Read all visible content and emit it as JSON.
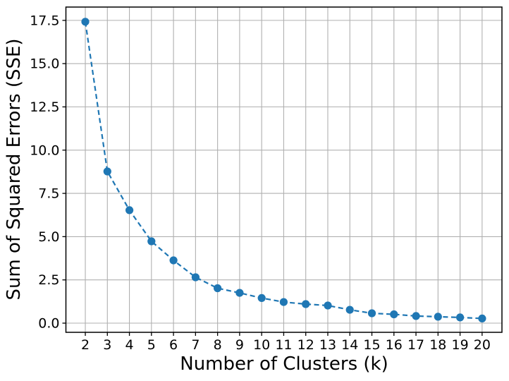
{
  "chart_data": {
    "type": "line",
    "title": "",
    "xlabel": "Number of Clusters (k)",
    "ylabel": "Sum of Squared Errors (SSE)",
    "x": [
      2,
      3,
      4,
      5,
      6,
      7,
      8,
      9,
      10,
      11,
      12,
      13,
      14,
      15,
      16,
      17,
      18,
      19,
      20
    ],
    "y": [
      17.42,
      8.77,
      6.53,
      4.73,
      3.63,
      2.65,
      2.02,
      1.75,
      1.45,
      1.22,
      1.1,
      1.02,
      0.77,
      0.57,
      0.51,
      0.41,
      0.37,
      0.33,
      0.27
    ],
    "xticks": [
      2,
      3,
      4,
      5,
      6,
      7,
      8,
      9,
      10,
      11,
      12,
      13,
      14,
      15,
      16,
      17,
      18,
      19,
      20
    ],
    "xtick_labels": [
      "2",
      "3",
      "4",
      "5",
      "6",
      "7",
      "8",
      "9",
      "10",
      "11",
      "12",
      "13",
      "14",
      "15",
      "16",
      "17",
      "18",
      "19",
      "20"
    ],
    "yticks": [
      0.0,
      2.5,
      5.0,
      7.5,
      10.0,
      12.5,
      15.0,
      17.5
    ],
    "ytick_labels": [
      "0.0",
      "2.5",
      "5.0",
      "7.5",
      "10.0",
      "12.5",
      "15.0",
      "17.5"
    ],
    "xlim": [
      1.12,
      20.9
    ],
    "ylim": [
      -0.53,
      18.27
    ],
    "grid": true,
    "legend": "none",
    "line_color": "#1f77b4",
    "line_style": "dashed",
    "marker": "circle",
    "grid_color": "#b0b0b0",
    "spine_color": "#000000",
    "background_color": "#ffffff"
  }
}
